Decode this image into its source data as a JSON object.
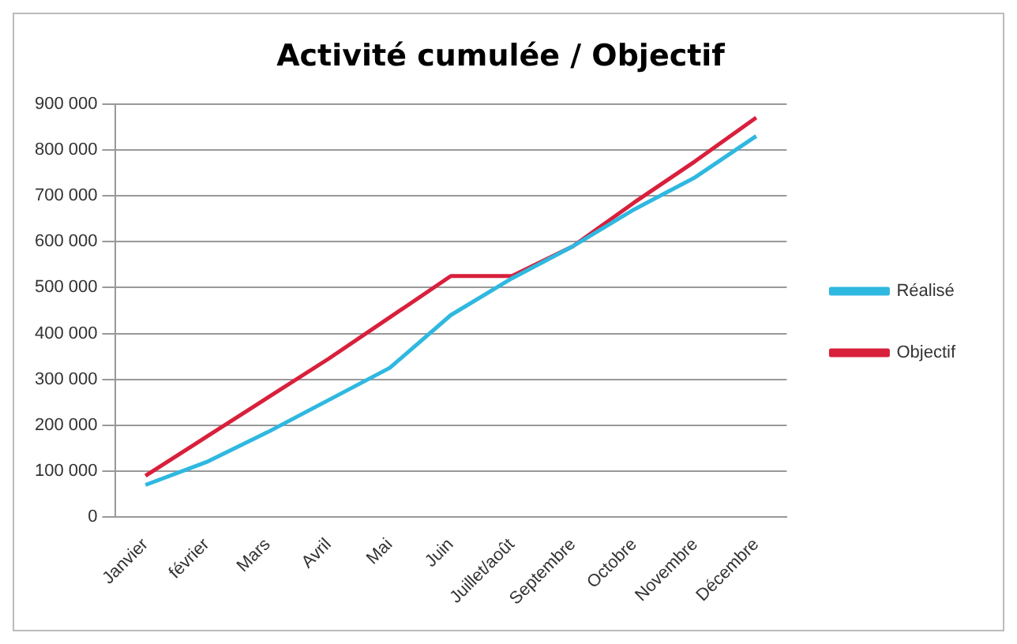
{
  "chart_data": {
    "type": "line",
    "title": "Activité cumulée / Objectif",
    "categories": [
      "Janvier",
      "février",
      "Mars",
      "Avril",
      "Mai",
      "Juin",
      "Juillet/août",
      "Septembre",
      "Octobre",
      "Novembre",
      "Décembre"
    ],
    "series": [
      {
        "name": "Réalisé",
        "color": "#2fb8e0",
        "values": [
          70000,
          120000,
          185000,
          255000,
          325000,
          440000,
          520000,
          590000,
          670000,
          740000,
          830000
        ]
      },
      {
        "name": "Objectif",
        "color": "#d8203c",
        "values": [
          90000,
          175000,
          260000,
          345000,
          435000,
          525000,
          525000,
          590000,
          685000,
          775000,
          870000
        ]
      }
    ],
    "ylim": [
      0,
      900000
    ],
    "yticks": [
      {
        "value": 0,
        "label": "0"
      },
      {
        "value": 100000,
        "label": "100 000"
      },
      {
        "value": 200000,
        "label": "200 000"
      },
      {
        "value": 300000,
        "label": "300 000"
      },
      {
        "value": 400000,
        "label": "400 000"
      },
      {
        "value": 500000,
        "label": "500 000"
      },
      {
        "value": 600000,
        "label": "600 000"
      },
      {
        "value": 700000,
        "label": "700 000"
      },
      {
        "value": 800000,
        "label": "800 000"
      },
      {
        "value": 900000,
        "label": "900 000"
      }
    ],
    "grid": "y",
    "legend": "right",
    "marker": "none",
    "line_style": "solid"
  }
}
